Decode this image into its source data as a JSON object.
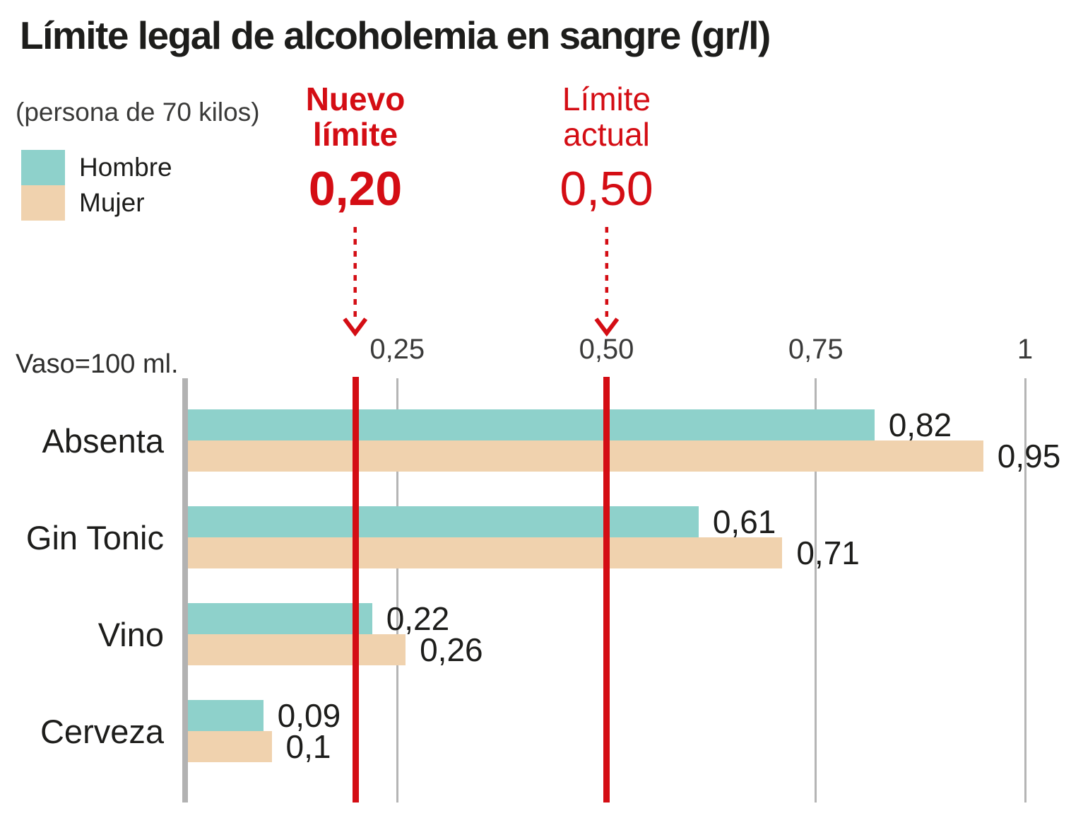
{
  "header": {
    "title": "Límite legal de alcoholemia en sangre (gr/l)"
  },
  "legend": {
    "note": "(persona de 70 kilos)",
    "items": [
      {
        "label": "Hombre",
        "color": "#8ed1cb"
      },
      {
        "label": "Mujer",
        "color": "#f0d2ae"
      }
    ]
  },
  "annotations": [
    {
      "id": "new-limit",
      "line1": "Nuevo",
      "line2": "límite",
      "value_label": "0,20",
      "value": 0.2,
      "style": "bold"
    },
    {
      "id": "current-limit",
      "line1": "Límite",
      "line2": "actual",
      "value_label": "0,50",
      "value": 0.5,
      "style": "regular"
    }
  ],
  "axis_note": "Vaso=100 ml.",
  "colors": {
    "hombre": "#8ed1cb",
    "mujer": "#f0d2ae",
    "accent_red": "#d40d14",
    "axis_gray": "#b2b2b2",
    "grid_gray": "#b5b5b5",
    "text_dark": "#1d1d1b",
    "text_secondary": "#3a3a39"
  },
  "chart_data": {
    "type": "bar",
    "orientation": "horizontal",
    "title": "Límite legal de alcoholemia en sangre (gr/l)",
    "subtitle": "(persona de 70 kilos)",
    "unit_note": "Vaso=100 ml.",
    "units": "gr/l",
    "categories": [
      "Absenta",
      "Gin Tonic",
      "Vino",
      "Cerveza"
    ],
    "series": [
      {
        "name": "Hombre",
        "color": "#8ed1cb",
        "values": [
          0.82,
          0.61,
          0.22,
          0.09
        ],
        "value_labels": [
          "0,82",
          "0,61",
          "0,22",
          "0,09"
        ]
      },
      {
        "name": "Mujer",
        "color": "#f0d2ae",
        "values": [
          0.95,
          0.71,
          0.26,
          0.1
        ],
        "value_labels": [
          "0,95",
          "0,71",
          "0,26",
          "0,1"
        ]
      }
    ],
    "xlim": [
      0,
      1
    ],
    "ticks": [
      {
        "value": 0.25,
        "label": "0,25"
      },
      {
        "value": 0.5,
        "label": "0,50"
      },
      {
        "value": 0.75,
        "label": "0,75"
      },
      {
        "value": 1,
        "label": "1"
      }
    ],
    "reference_lines": [
      {
        "value": 0.2,
        "label": "Nuevo límite 0,20"
      },
      {
        "value": 0.5,
        "label": "Límite actual 0,50"
      }
    ],
    "grid": true,
    "legend_position": "top-left"
  }
}
